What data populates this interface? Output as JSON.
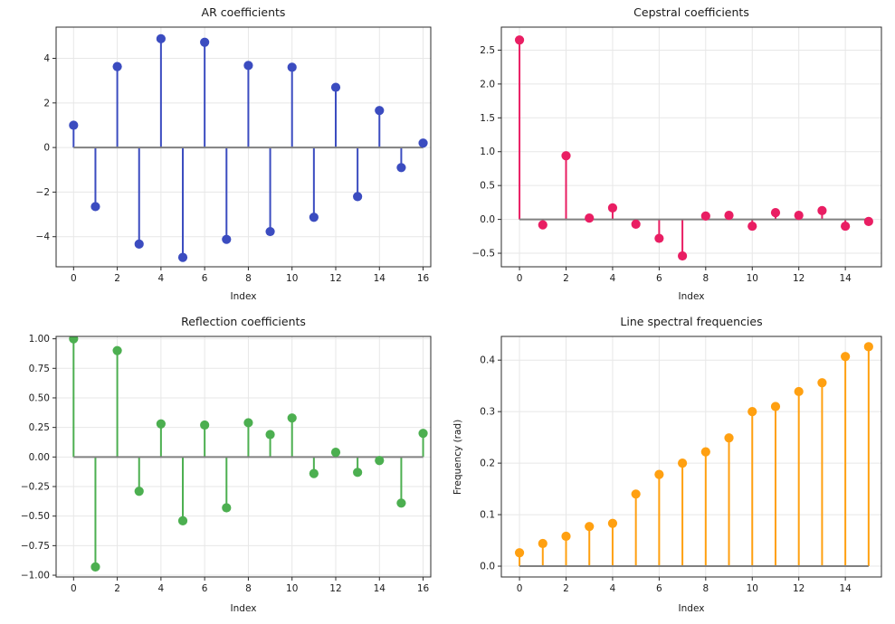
{
  "figure": {
    "background": "#ffffff",
    "grid_color": "#e7e7e7",
    "spine_color": "#2b2b2b",
    "tick_text_color": "#1c1c1c",
    "baseline_color": "#808080"
  },
  "chart_data": [
    {
      "type": "stem",
      "title": "AR coefficients",
      "xlabel": "Index",
      "ylabel": "",
      "color": "#3B4CC0",
      "x": [
        0,
        1,
        2,
        3,
        4,
        5,
        6,
        7,
        8,
        9,
        10,
        11,
        12,
        13,
        14,
        15,
        16
      ],
      "values": [
        1.0,
        -2.65,
        3.63,
        -4.33,
        4.88,
        -4.93,
        4.72,
        -4.12,
        3.68,
        -3.77,
        3.6,
        -3.13,
        2.7,
        -2.2,
        1.66,
        -0.9,
        0.2
      ],
      "xticks": [
        0,
        2,
        4,
        6,
        8,
        10,
        12,
        14,
        16
      ],
      "xtick_labels": [
        "0",
        "2",
        "4",
        "6",
        "8",
        "10",
        "12",
        "14",
        "16"
      ],
      "yticks": [
        -4,
        -2,
        0,
        2,
        4
      ],
      "ytick_labels": [
        "−4",
        "−2",
        "0",
        "2",
        "4"
      ],
      "xlim": [
        -0.8,
        16.35
      ],
      "ylim": [
        -5.35,
        5.4
      ],
      "grid": true,
      "legend": null
    },
    {
      "type": "stem",
      "title": "Cepstral coefficients",
      "xlabel": "Index",
      "ylabel": "",
      "color": "#E91E63",
      "x": [
        0,
        1,
        2,
        3,
        4,
        5,
        6,
        7,
        8,
        9,
        10,
        11,
        12,
        13,
        14,
        15
      ],
      "values": [
        2.65,
        -0.08,
        0.94,
        0.02,
        0.17,
        -0.07,
        -0.28,
        -0.54,
        0.05,
        0.06,
        -0.1,
        0.1,
        0.06,
        0.13,
        -0.1,
        -0.03
      ],
      "xticks": [
        0,
        2,
        4,
        6,
        8,
        10,
        12,
        14
      ],
      "xtick_labels": [
        "0",
        "2",
        "4",
        "6",
        "8",
        "10",
        "12",
        "14"
      ],
      "yticks": [
        -0.5,
        0.0,
        0.5,
        1.0,
        1.5,
        2.0,
        2.5
      ],
      "ytick_labels": [
        "−0.5",
        "0.0",
        "0.5",
        "1.0",
        "1.5",
        "2.0",
        "2.5"
      ],
      "xlim": [
        -0.78,
        15.55
      ],
      "ylim": [
        -0.7,
        2.84
      ],
      "grid": true,
      "legend": null
    },
    {
      "type": "stem",
      "title": "Reflection coefficients",
      "xlabel": "Index",
      "ylabel": "",
      "color": "#4CAF50",
      "x": [
        0,
        1,
        2,
        3,
        4,
        5,
        6,
        7,
        8,
        9,
        10,
        11,
        12,
        13,
        14,
        15,
        16
      ],
      "values": [
        1.0,
        -0.93,
        0.9,
        -0.29,
        0.28,
        -0.54,
        0.27,
        -0.43,
        0.29,
        0.19,
        0.33,
        -0.14,
        0.04,
        -0.13,
        -0.03,
        -0.39,
        0.2
      ],
      "xticks": [
        0,
        2,
        4,
        6,
        8,
        10,
        12,
        14,
        16
      ],
      "xtick_labels": [
        "0",
        "2",
        "4",
        "6",
        "8",
        "10",
        "12",
        "14",
        "16"
      ],
      "yticks": [
        -1.0,
        -0.75,
        -0.5,
        -0.25,
        0.0,
        0.25,
        0.5,
        0.75,
        1.0
      ],
      "ytick_labels": [
        "−1.00",
        "−0.75",
        "−0.50",
        "−0.25",
        "0.00",
        "0.25",
        "0.50",
        "0.75",
        "1.00"
      ],
      "xlim": [
        -0.8,
        16.35
      ],
      "ylim": [
        -1.015,
        1.02
      ],
      "grid": true,
      "legend": null
    },
    {
      "type": "stem",
      "title": "Line spectral frequencies",
      "xlabel": "Index",
      "ylabel": "Frequency (rad)",
      "color": "#FFA011",
      "x": [
        0,
        1,
        2,
        3,
        4,
        5,
        6,
        7,
        8,
        9,
        10,
        11,
        12,
        13,
        14,
        15
      ],
      "values": [
        0.026,
        0.044,
        0.058,
        0.077,
        0.083,
        0.14,
        0.178,
        0.2,
        0.222,
        0.249,
        0.3,
        0.31,
        0.339,
        0.356,
        0.407,
        0.426
      ],
      "xticks": [
        0,
        2,
        4,
        6,
        8,
        10,
        12,
        14
      ],
      "xtick_labels": [
        "0",
        "2",
        "4",
        "6",
        "8",
        "10",
        "12",
        "14"
      ],
      "yticks": [
        0.0,
        0.1,
        0.2,
        0.3,
        0.4
      ],
      "ytick_labels": [
        "0.0",
        "0.1",
        "0.2",
        "0.3",
        "0.4"
      ],
      "xlim": [
        -0.78,
        15.55
      ],
      "ylim": [
        -0.021,
        0.446
      ],
      "grid": true,
      "legend": null
    }
  ]
}
